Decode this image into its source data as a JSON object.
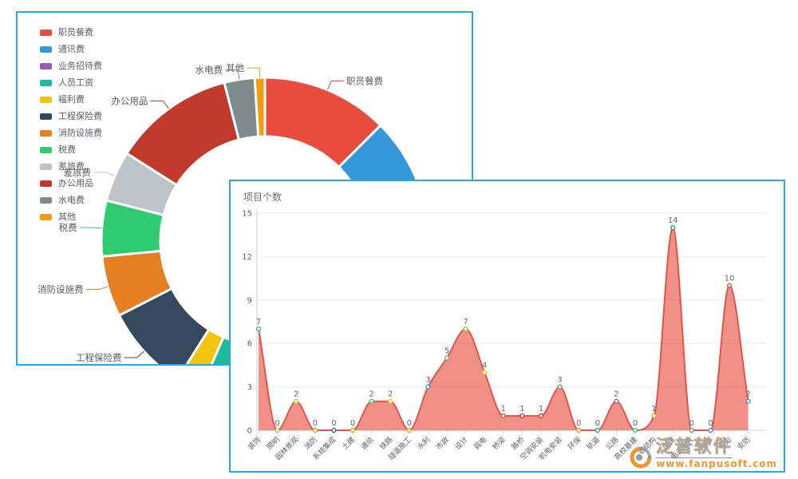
{
  "accent_border_color": "#29a9e0",
  "donut_panel": {
    "legend": {
      "items": [
        {
          "label": "职员餐费",
          "color": "#e74c3c"
        },
        {
          "label": "通讯费",
          "color": "#3498db"
        },
        {
          "label": "业务招待费",
          "color": "#9b59b6"
        },
        {
          "label": "人员工资",
          "color": "#1abc9c"
        },
        {
          "label": "福利费",
          "color": "#f1c40f"
        },
        {
          "label": "工程保险费",
          "color": "#34495e"
        },
        {
          "label": "消防设施费",
          "color": "#e67e22"
        },
        {
          "label": "税费",
          "color": "#2ecc71"
        },
        {
          "label": "差旅费",
          "color": "#bdc3c7"
        },
        {
          "label": "办公用品",
          "color": "#c0392b"
        },
        {
          "label": "水电费",
          "color": "#7f8c8d"
        },
        {
          "label": "其他",
          "color": "#f39c12"
        }
      ]
    }
  },
  "area_panel": {
    "title": "项目个数",
    "watermark": {
      "brand": "泛普软件",
      "url": "www.fanpusoft.com"
    }
  },
  "chart_data": [
    {
      "type": "pie",
      "subtype": "donut",
      "legend_position": "left",
      "labels": [
        "职员餐费",
        "通讯费",
        "业务招待费",
        "人员工资",
        "福利费",
        "工程保险费",
        "消防设施费",
        "税费",
        "差旅费",
        "办公用品",
        "水电费",
        "其他"
      ],
      "values": [
        12.5,
        20,
        18,
        6,
        2.5,
        8.5,
        6,
        5.5,
        5,
        12,
        3,
        1
      ],
      "values_unit": "estimated_percent_from_arc_angles",
      "colors": [
        "#e74c3c",
        "#3498db",
        "#9b59b6",
        "#1abc9c",
        "#f1c40f",
        "#34495e",
        "#e67e22",
        "#2ecc71",
        "#bdc3c7",
        "#c0392b",
        "#7f8c8d",
        "#f39c12"
      ],
      "inner_radius_ratio": 0.64,
      "label_color": "#5b5b5b"
    },
    {
      "type": "area",
      "title": "项目个数",
      "smooth": true,
      "grid": true,
      "categories": [
        "装饰",
        "照明",
        "园林景观",
        "消防",
        "系统集成",
        "土建",
        "通信",
        "铁路",
        "隧道施工",
        "水利",
        "市政",
        "设计",
        "弱电",
        "桥梁",
        "路桥",
        "空调安装",
        "机电安装",
        "环保",
        "轨道",
        "公路",
        "高校基建",
        "钢结构",
        "房建",
        "电子电气",
        "电梯",
        "电力",
        "安防"
      ],
      "values": [
        7,
        0,
        2,
        0,
        0,
        0,
        2,
        2,
        0,
        3,
        5,
        7,
        4,
        1,
        1,
        1,
        3,
        0,
        0,
        2,
        0,
        1,
        14,
        0,
        0,
        10,
        2
      ],
      "ylim": [
        0,
        15
      ],
      "yticks": [
        0,
        3,
        6,
        9,
        12,
        15
      ],
      "line_color": "#e0564a",
      "fill_color": "rgba(231,76,60,0.62)",
      "axis_color": "#ccd2da",
      "gridline_color": "#e7ebf2",
      "value_label_color": "#5e6a72",
      "tick_label_color": "#606266",
      "point_colors": [
        "#36b3c9",
        "#a3c644",
        "#f1c40f",
        "#f39c12",
        "#16808d",
        "#f39c12",
        "#2ecc71",
        "#f1c40f",
        "#f39c12",
        "#3f9bd9",
        "#95a5a6",
        "#a3c644",
        "#f1c40f",
        "#e74c3c",
        "#c0392b",
        "#c0392b",
        "#7f8c8d",
        "#f39c12",
        "#1abc9c",
        "#9b59b6",
        "#2ecc71",
        "#d4ac0d",
        "#27ae60",
        "#7f8c8d",
        "#3498db",
        "#e74c3c",
        "#3498db"
      ]
    }
  ]
}
